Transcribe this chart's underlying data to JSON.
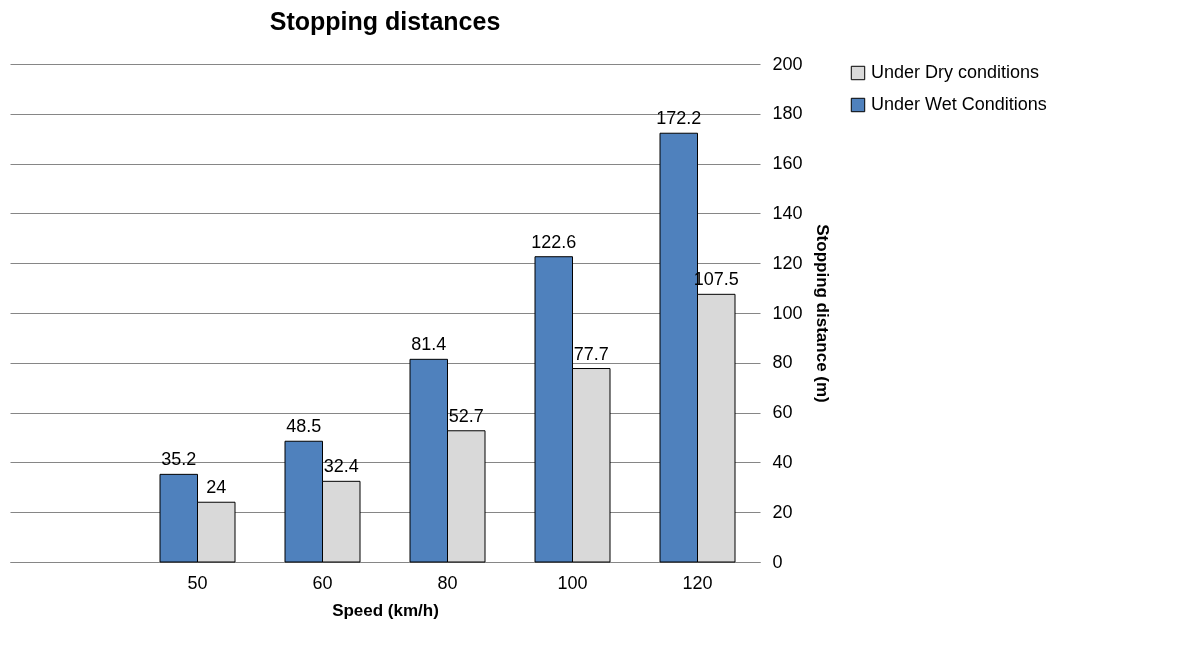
{
  "chart_data": {
    "type": "bar",
    "title": "Stopping distances",
    "xlabel": "Speed (km/h)",
    "ylabel": "Stopping distance (m)",
    "categories": [
      null,
      "50",
      "60",
      "80",
      "100",
      "120"
    ],
    "series": [
      {
        "name": "Under Wet Conditions",
        "color": "#4f81bd",
        "values": [
          null,
          35.2,
          48.5,
          81.4,
          122.6,
          172.2
        ]
      },
      {
        "name": "Under Dry conditions",
        "color": "#d9d9d9",
        "values": [
          null,
          24,
          32.4,
          52.7,
          77.7,
          107.5
        ]
      }
    ],
    "ylim": [
      0,
      200
    ],
    "yticks": [
      0,
      20,
      40,
      60,
      80,
      100,
      120,
      140,
      160,
      180,
      200
    ],
    "grid": "y",
    "legend": "right",
    "data_labels": true
  }
}
